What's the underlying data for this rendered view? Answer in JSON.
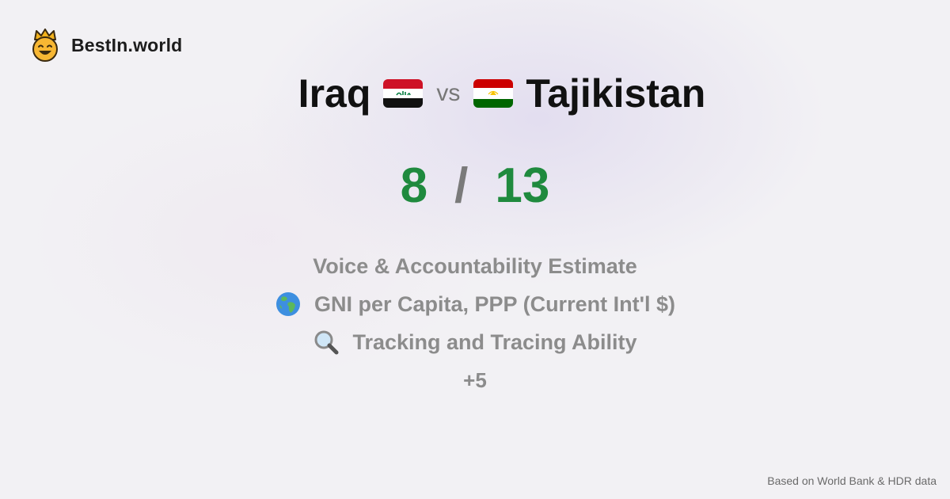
{
  "brand": {
    "name": "BestIn.world",
    "logo_icon": "crown-smiley-icon"
  },
  "title": {
    "country_a": "Iraq",
    "flag_a": "iraq-flag-icon",
    "vs": "vs",
    "country_b": "Tajikistan",
    "flag_b": "tajikistan-flag-icon"
  },
  "score": {
    "a": "8",
    "separator": "/",
    "b": "13",
    "color": "#1f8a3e"
  },
  "metrics": [
    {
      "label": "Voice & Accountability Estimate",
      "icon": ""
    },
    {
      "label": "GNI per Capita, PPP (Current Int'l $)",
      "icon": "globe-icon"
    },
    {
      "label": "Tracking and Tracing Ability",
      "icon": "magnifier-icon"
    }
  ],
  "more": "+5",
  "footer": "Based on World Bank & HDR data"
}
